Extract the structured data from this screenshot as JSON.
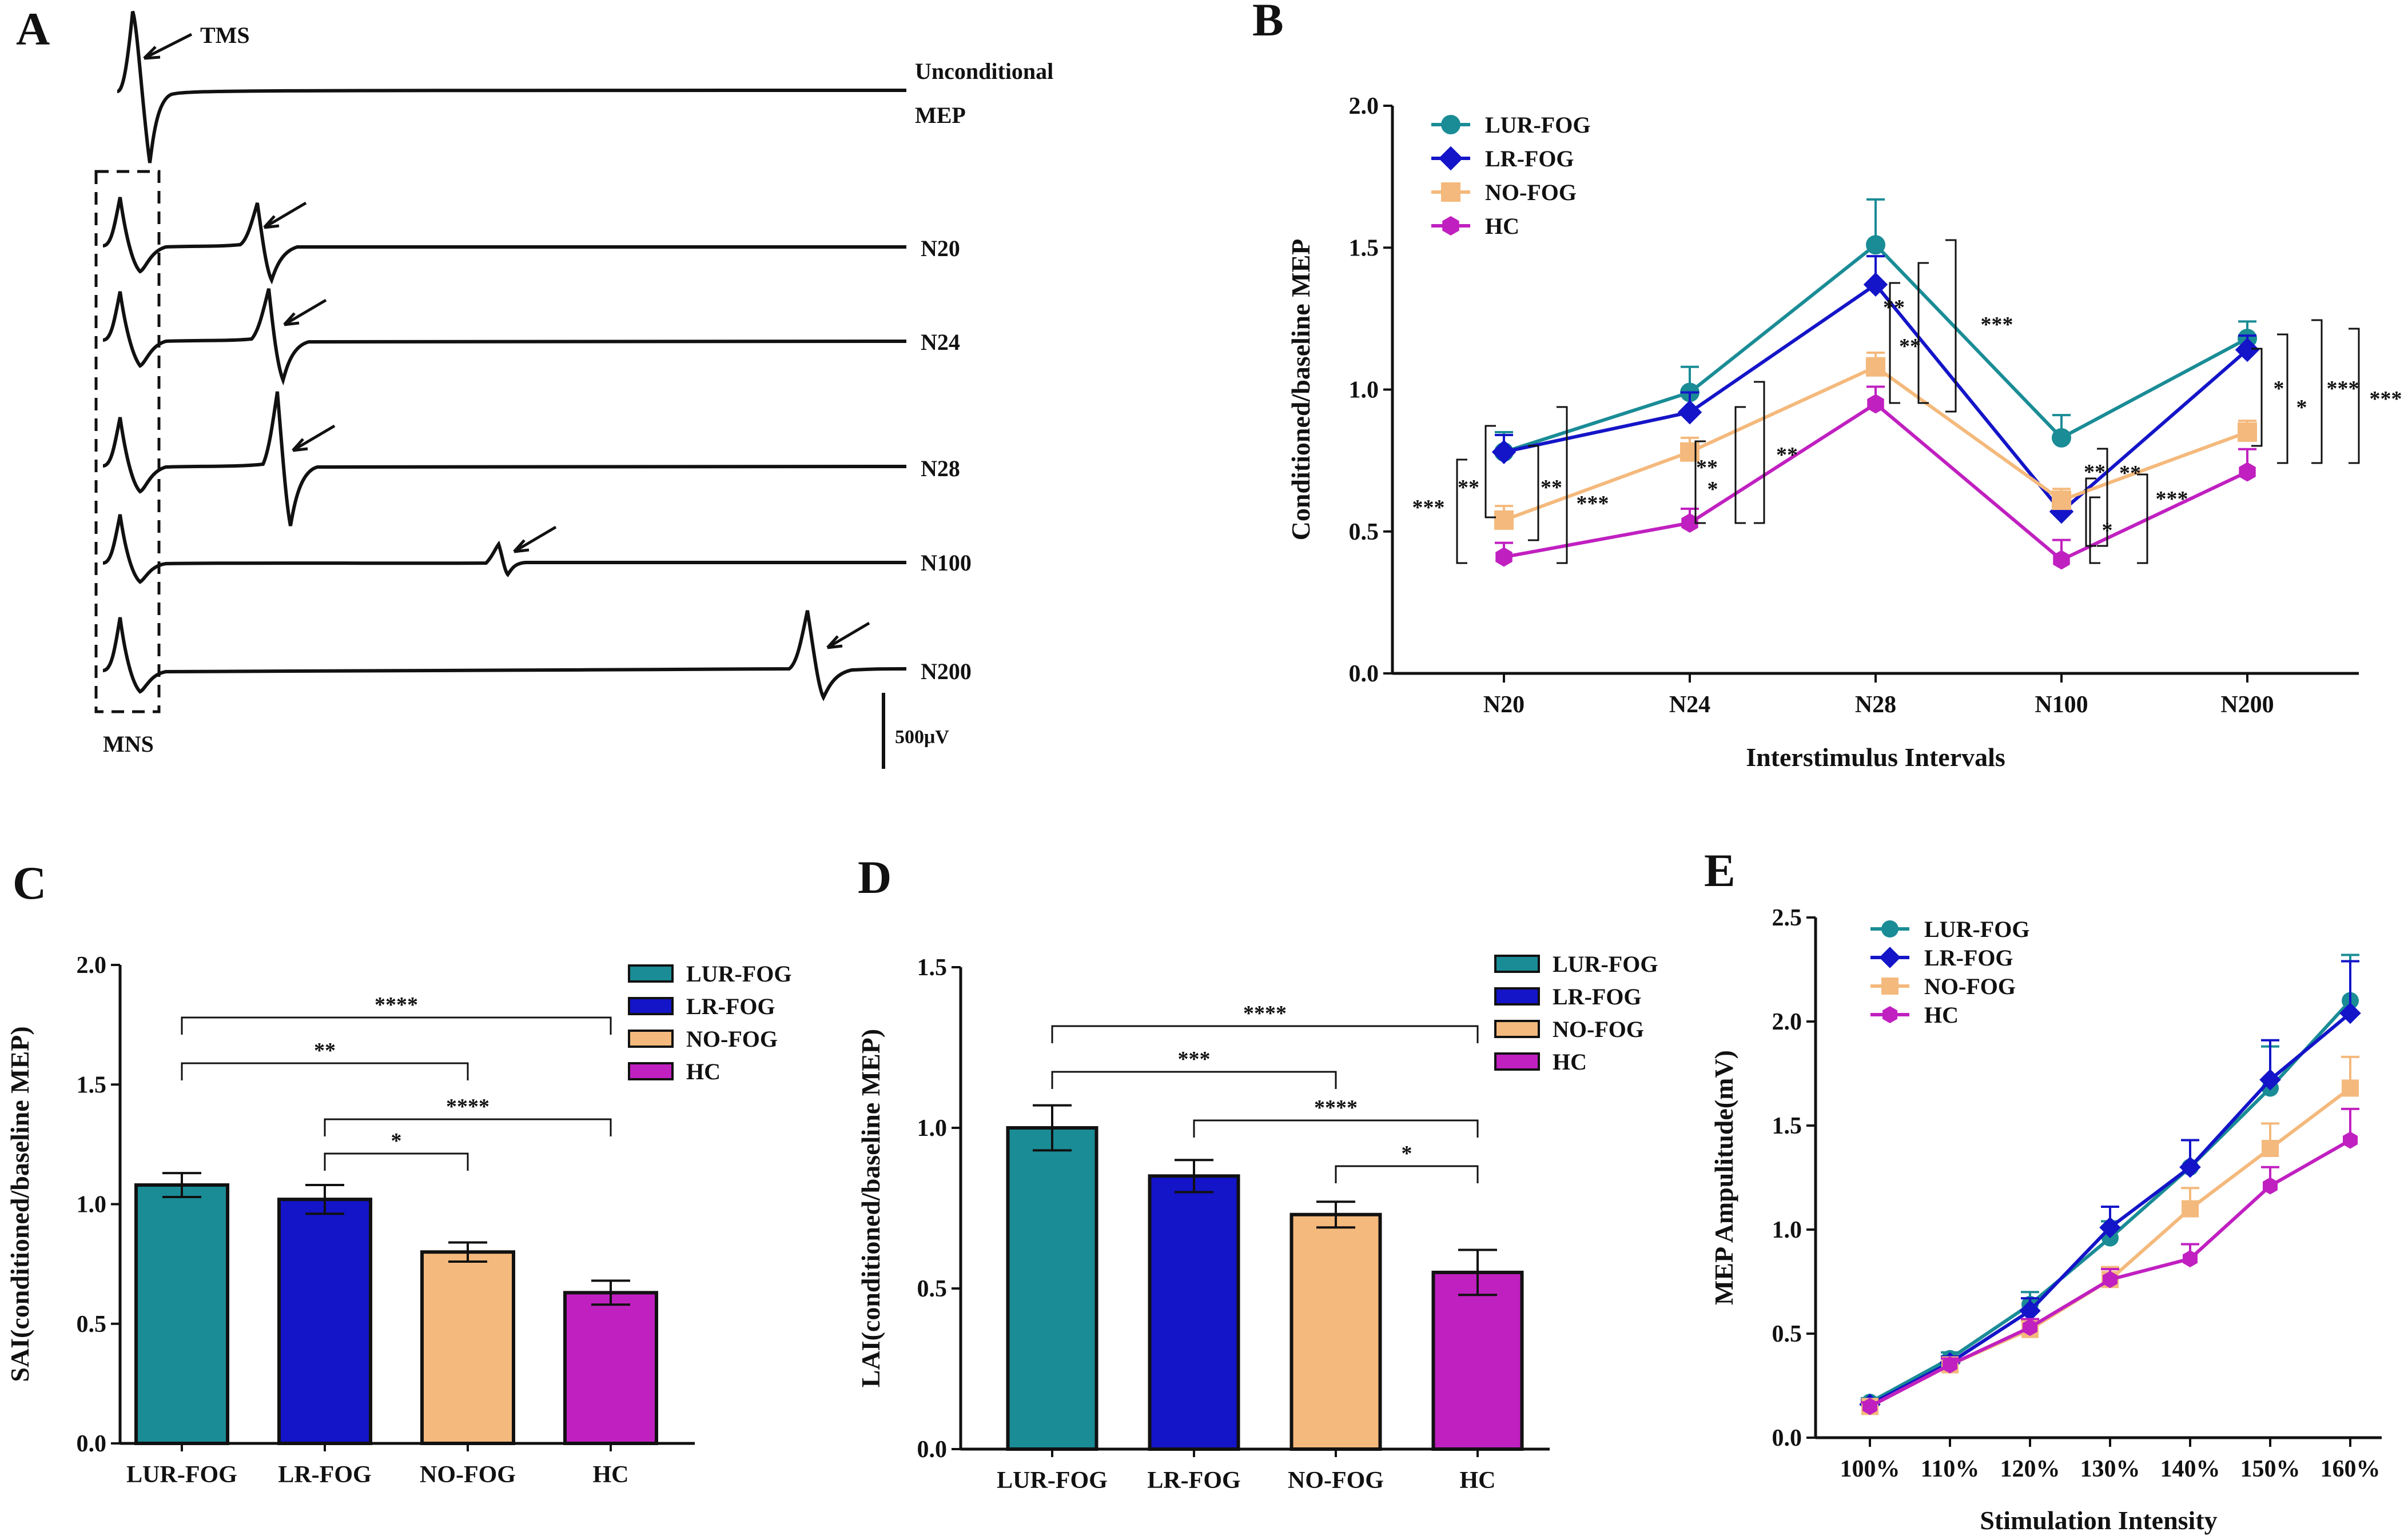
{
  "panels": {
    "A": {
      "letter": "A",
      "tms_label": "TMS",
      "mns_label": "MNS",
      "scale_bar_label": "500μV",
      "trace_labels": [
        "Unconditional",
        "MEP",
        "N20",
        "N24",
        "N28",
        "N100",
        "N200"
      ]
    },
    "B": {
      "letter": "B"
    },
    "C": {
      "letter": "C"
    },
    "D": {
      "letter": "D"
    },
    "E": {
      "letter": "E"
    }
  },
  "colors": {
    "LUR-FOG": "#1a8c96",
    "LR-FOG": "#1414c8",
    "NO-FOG": "#f4b97c",
    "HC": "#c020c0"
  },
  "chart_data": [
    {
      "id": "B",
      "type": "line",
      "xlabel": "Interstimulus Intervals",
      "ylabel": "Conditioned/baseline MEP",
      "categories": [
        "N20",
        "N24",
        "N28",
        "N100",
        "N200"
      ],
      "ylim": [
        0,
        2.0
      ],
      "yticks": [
        "0.0",
        "0.5",
        "1.0",
        "1.5",
        "2.0"
      ],
      "legend_position": "top-left",
      "series": [
        {
          "name": "LUR-FOG",
          "marker": "circle",
          "values": [
            0.78,
            0.99,
            1.51,
            0.83,
            1.18
          ],
          "err": [
            0.07,
            0.09,
            0.16,
            0.08,
            0.06
          ]
        },
        {
          "name": "LR-FOG",
          "marker": "diamond",
          "values": [
            0.78,
            0.92,
            1.37,
            0.57,
            1.14
          ],
          "err": [
            0.06,
            0.07,
            0.1,
            0.06,
            0.05
          ]
        },
        {
          "name": "NO-FOG",
          "marker": "square",
          "values": [
            0.54,
            0.78,
            1.08,
            0.61,
            0.85
          ],
          "err": [
            0.05,
            0.05,
            0.05,
            0.04,
            0.04
          ]
        },
        {
          "name": "HC",
          "marker": "hexagon",
          "values": [
            0.41,
            0.53,
            0.95,
            0.4,
            0.71
          ],
          "err": [
            0.05,
            0.05,
            0.06,
            0.07,
            0.08
          ]
        }
      ],
      "significance": [
        {
          "text": "***"
        },
        {
          "text": "**"
        },
        {
          "text": "**"
        },
        {
          "text": "***"
        },
        {
          "text": "*"
        },
        {
          "text": "**"
        },
        {
          "text": "**"
        },
        {
          "text": "**"
        },
        {
          "text": "**"
        },
        {
          "text": "***"
        },
        {
          "text": "**"
        },
        {
          "text": "**"
        },
        {
          "text": "*"
        },
        {
          "text": "***"
        },
        {
          "text": "*"
        },
        {
          "text": "*"
        },
        {
          "text": "***"
        },
        {
          "text": "***"
        }
      ]
    },
    {
      "id": "C",
      "type": "bar",
      "xlabel": "",
      "ylabel": "SAI(conditioned/baseline MEP)",
      "categories": [
        "LUR-FOG",
        "LR-FOG",
        "NO-FOG",
        "HC"
      ],
      "values": [
        1.08,
        1.02,
        0.8,
        0.63
      ],
      "err": [
        0.05,
        0.06,
        0.04,
        0.05
      ],
      "ylim": [
        0,
        2.0
      ],
      "yticks": [
        "0.0",
        "0.5",
        "1.0",
        "1.5",
        "2.0"
      ],
      "legend": [
        "LUR-FOG",
        "LR-FOG",
        "NO-FOG",
        "HC"
      ],
      "legend_position": "top-right",
      "significance": [
        {
          "from": 0,
          "to": 3,
          "text": "****"
        },
        {
          "from": 0,
          "to": 2,
          "text": "**"
        },
        {
          "from": 1,
          "to": 3,
          "text": "****"
        },
        {
          "from": 1,
          "to": 2,
          "text": "*"
        }
      ]
    },
    {
      "id": "D",
      "type": "bar",
      "xlabel": "",
      "ylabel": "LAI(conditioned/baseline MEP)",
      "categories": [
        "LUR-FOG",
        "LR-FOG",
        "NO-FOG",
        "HC"
      ],
      "values": [
        1.0,
        0.85,
        0.73,
        0.55
      ],
      "err": [
        0.07,
        0.05,
        0.04,
        0.07
      ],
      "ylim": [
        0,
        1.5
      ],
      "yticks": [
        "0.0",
        "0.5",
        "1.0",
        "1.5"
      ],
      "legend": [
        "LUR-FOG",
        "LR-FOG",
        "NO-FOG",
        "HC"
      ],
      "legend_position": "top-right",
      "significance": [
        {
          "from": 0,
          "to": 3,
          "text": "****"
        },
        {
          "from": 0,
          "to": 2,
          "text": "***"
        },
        {
          "from": 1,
          "to": 3,
          "text": "****"
        },
        {
          "from": 2,
          "to": 3,
          "text": "*"
        }
      ]
    },
    {
      "id": "E",
      "type": "line",
      "xlabel": "Stimulation Intensity",
      "ylabel": "MEP Ampulitude(mV)",
      "categories": [
        "100%",
        "110%",
        "120%",
        "130%",
        "140%",
        "150%",
        "160%"
      ],
      "ylim": [
        0,
        2.5
      ],
      "yticks": [
        "0.0",
        "0.5",
        "1.0",
        "1.5",
        "2.0",
        "2.5"
      ],
      "legend_position": "top-left",
      "series": [
        {
          "name": "LUR-FOG",
          "marker": "circle",
          "values": [
            0.17,
            0.38,
            0.64,
            0.96,
            1.3,
            1.68,
            2.1
          ],
          "err": [
            0.02,
            0.03,
            0.06,
            0.08,
            0.13,
            0.2,
            0.22
          ]
        },
        {
          "name": "LR-FOG",
          "marker": "diamond",
          "values": [
            0.16,
            0.36,
            0.61,
            1.01,
            1.3,
            1.72,
            2.04
          ],
          "err": [
            0.02,
            0.03,
            0.06,
            0.1,
            0.13,
            0.19,
            0.25
          ]
        },
        {
          "name": "NO-FOG",
          "marker": "square",
          "values": [
            0.15,
            0.35,
            0.52,
            0.76,
            1.1,
            1.39,
            1.68
          ],
          "err": [
            0.02,
            0.03,
            0.04,
            0.06,
            0.1,
            0.12,
            0.15
          ]
        },
        {
          "name": "HC",
          "marker": "hexagon",
          "values": [
            0.15,
            0.35,
            0.53,
            0.76,
            0.86,
            1.21,
            1.43
          ],
          "err": [
            0.02,
            0.03,
            0.04,
            0.05,
            0.07,
            0.09,
            0.15
          ]
        }
      ]
    }
  ]
}
